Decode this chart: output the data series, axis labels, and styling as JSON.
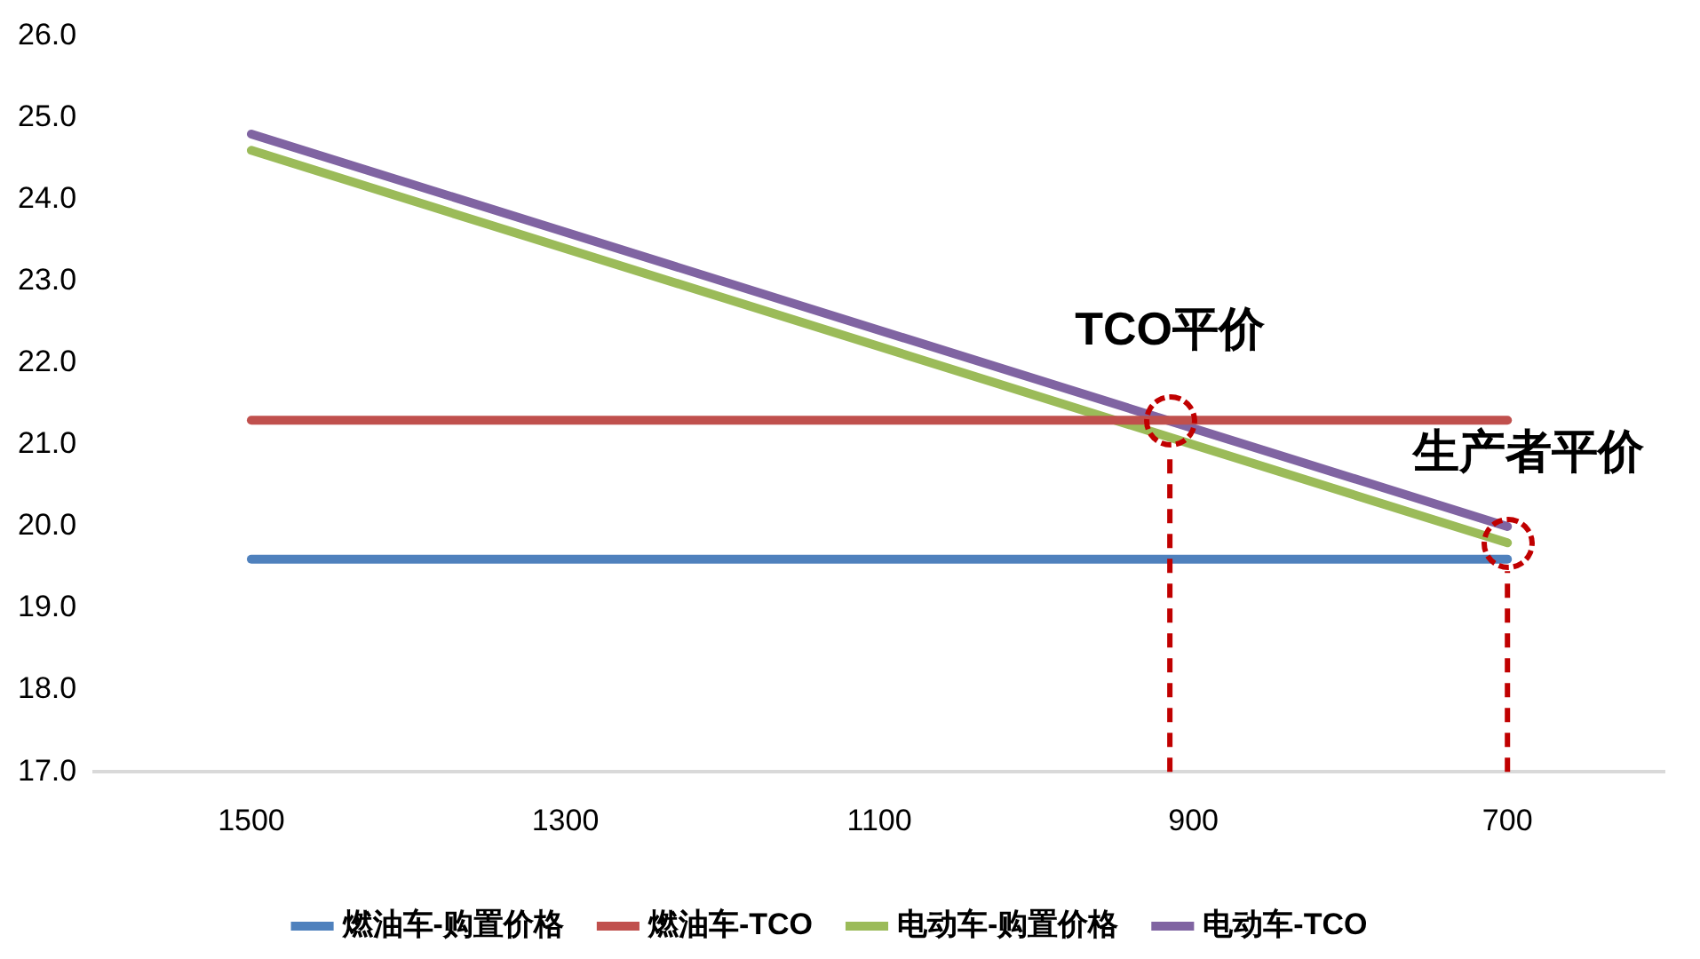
{
  "chart_data": {
    "type": "line",
    "x": [
      1500,
      700
    ],
    "series": [
      {
        "name": "燃油车-购置价格",
        "color": "#4f81bd",
        "values": [
          19.6,
          19.6
        ]
      },
      {
        "name": "燃油车-TCO",
        "color": "#c0504d",
        "values": [
          21.3,
          21.3
        ]
      },
      {
        "name": "电动车-购置价格",
        "color": "#9bbb59",
        "values": [
          24.6,
          19.8
        ]
      },
      {
        "name": "电动车-TCO",
        "color": "#8064a2",
        "values": [
          24.8,
          20.0
        ]
      }
    ],
    "xlim": [
      1600,
      600
    ],
    "xticks": [
      1500,
      1300,
      1100,
      900,
      700
    ],
    "ylim": [
      17,
      26
    ],
    "yticks": [
      {
        "value": 17,
        "label": "17.0"
      },
      {
        "value": 18,
        "label": "18.0"
      },
      {
        "value": 19,
        "label": "19.0"
      },
      {
        "value": 20,
        "label": "20.0"
      },
      {
        "value": 21,
        "label": "21.0"
      },
      {
        "value": 22,
        "label": "22.0"
      },
      {
        "value": 23,
        "label": "23.0"
      },
      {
        "value": 24,
        "label": "24.0"
      },
      {
        "value": 25,
        "label": "25.0"
      },
      {
        "value": 26,
        "label": "26.0"
      }
    ],
    "ref_lines": [
      {
        "axis": "x",
        "value": 915,
        "color": "#c00000",
        "line_style": "dashed"
      },
      {
        "axis": "x",
        "value": 700,
        "color": "#c00000",
        "line_style": "dashed"
      }
    ],
    "annotations": [
      {
        "text": "TCO平价",
        "x": 915,
        "y": 21.3
      },
      {
        "text": "生产者平价",
        "x": 700,
        "y": 19.8
      }
    ],
    "grid": false,
    "legend": "bottom",
    "line_style": "solid"
  }
}
